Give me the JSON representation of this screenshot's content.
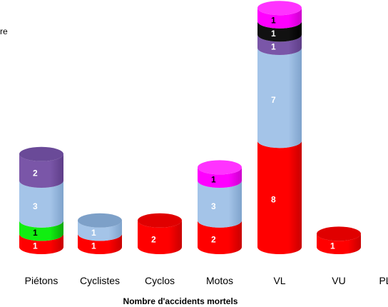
{
  "chart_data": {
    "type": "bar",
    "stacked": true,
    "style": "3d-cylinder",
    "categories": [
      "Piétons",
      "Cyclistes",
      "Cyclos",
      "Motos",
      "VL",
      "VU",
      "PL"
    ],
    "xlabel": "Nombre d'accidents mortels",
    "legend_fragment": "re",
    "series": [
      {
        "values": [
          1,
          1,
          2,
          2,
          8,
          1,
          0
        ],
        "color": "#ff0000",
        "side": "#c80000",
        "top": "#e00000",
        "label_color": "#ffffff"
      },
      {
        "values": [
          1,
          0,
          0,
          0,
          0,
          0,
          0
        ],
        "color": "#11ee11",
        "side": "#0aa80a",
        "top": "#30ff30",
        "label_color": "#000000"
      },
      {
        "values": [
          3,
          1,
          0,
          3,
          7,
          0,
          0
        ],
        "color": "#a4c4e8",
        "side": "#7fa3cc",
        "top": "#7da0c8",
        "label_color": "#ffffff"
      },
      {
        "values": [
          2,
          0,
          0,
          0,
          1,
          0,
          0
        ],
        "color": "#7a56a8",
        "side": "#5e3e88",
        "top": "#6a4a98",
        "label_color": "#ffffff"
      },
      {
        "values": [
          0,
          0,
          0,
          0,
          1,
          0,
          0
        ],
        "color": "#111111",
        "side": "#000000",
        "top": "#222222",
        "label_color": "#ffffff"
      },
      {
        "values": [
          0,
          0,
          0,
          1,
          1,
          0,
          0
        ],
        "color": "#ff00ff",
        "side": "#cc00cc",
        "top": "#ff33ff",
        "label_color": "#000000"
      }
    ]
  }
}
